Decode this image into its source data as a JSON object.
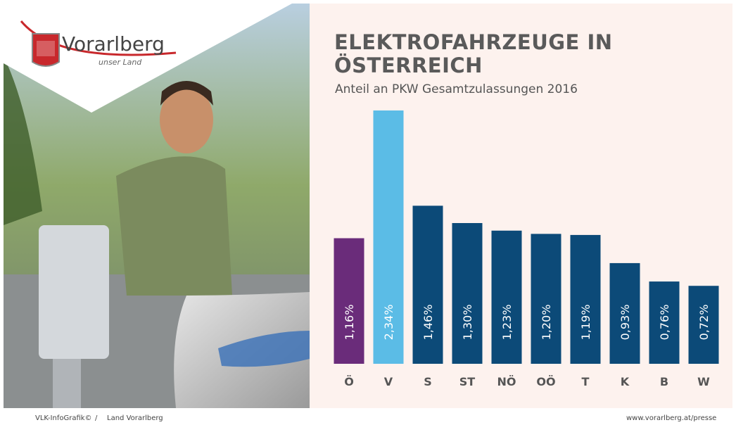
{
  "chart_data": {
    "type": "bar",
    "title": "ELEKTROFAHRZEUGE IN ÖSTERREICH",
    "subtitle": "Anteil an PKW Gesamtzulassungen 2016",
    "categories": [
      "Ö",
      "V",
      "S",
      "ST",
      "NÖ",
      "OÖ",
      "T",
      "K",
      "B",
      "W"
    ],
    "values": [
      1.16,
      2.34,
      1.46,
      1.3,
      1.23,
      1.2,
      1.19,
      0.93,
      0.76,
      0.72
    ],
    "value_labels": [
      "1,16%",
      "2,34%",
      "1,46%",
      "1,30%",
      "1,23%",
      "1,20%",
      "1,19%",
      "0,93%",
      "0,76%",
      "0,72%"
    ],
    "colors": [
      "#6a2c7a",
      "#5bbce6",
      "#0c4a78",
      "#0c4a78",
      "#0c4a78",
      "#0c4a78",
      "#0c4a78",
      "#0c4a78",
      "#0c4a78",
      "#0c4a78"
    ]
  },
  "logo": {
    "name": "Vorarlberg",
    "tagline": "unser Land"
  },
  "footer": {
    "left": "VLK-InfoGrafik©",
    "separator": "/",
    "source": "Land Vorarlberg",
    "url": "www.vorarlberg.at/presse"
  }
}
